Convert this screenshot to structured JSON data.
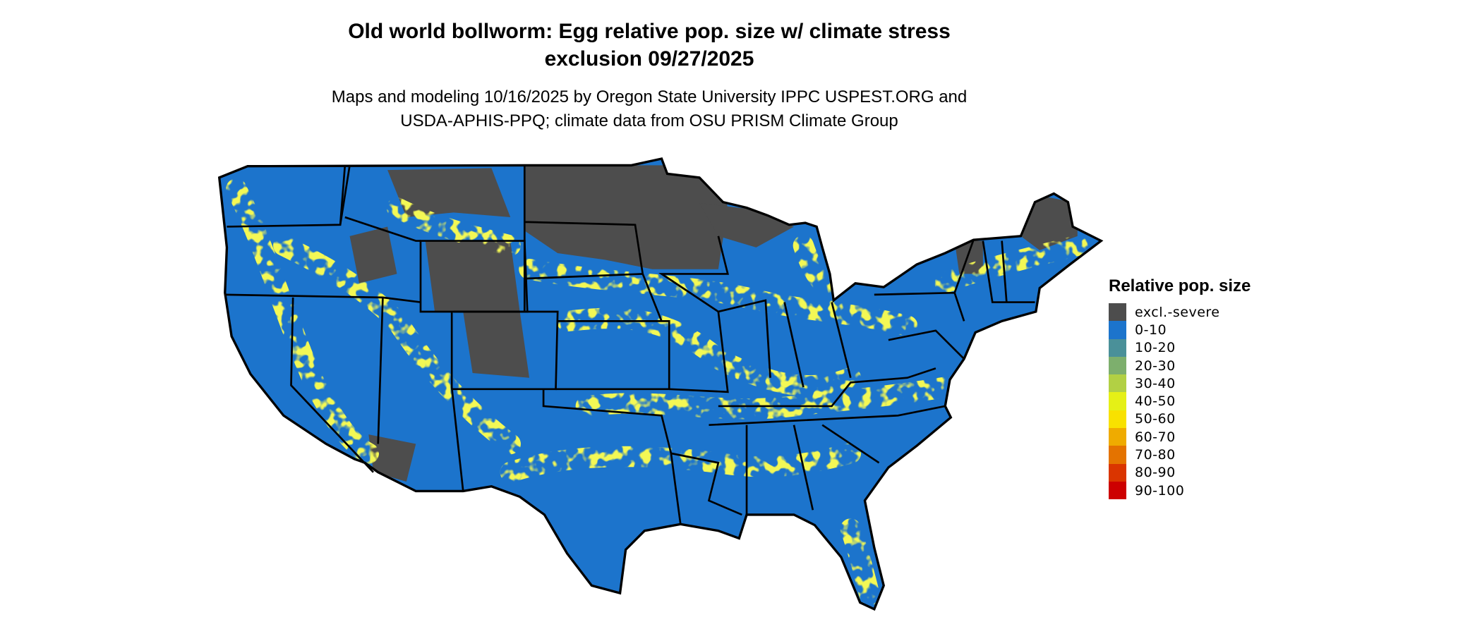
{
  "title": {
    "line1": "Old world bollworm: Egg relative pop. size w/ climate stress",
    "line2": "exclusion 09/27/2025"
  },
  "subtitle": {
    "line1": "Maps and modeling 10/16/2025 by Oregon State University IPPC USPEST.ORG and",
    "line2": "USDA-APHIS-PPQ; climate data from OSU PRISM Climate Group"
  },
  "map": {
    "region": "Contiguous United States",
    "dominant_class": "0-10",
    "border_color": "#000000"
  },
  "legend": {
    "title": "Relative pop. size",
    "items": [
      {
        "label": "excl.-severe",
        "color": "#4d4d4d"
      },
      {
        "label": "0-10",
        "color": "#1c74cc"
      },
      {
        "label": "10-20",
        "color": "#4a9099"
      },
      {
        "label": "20-30",
        "color": "#7daf6d"
      },
      {
        "label": "30-40",
        "color": "#b2d044"
      },
      {
        "label": "40-50",
        "color": "#e5f016"
      },
      {
        "label": "50-60",
        "color": "#f8e100"
      },
      {
        "label": "60-70",
        "color": "#efab00"
      },
      {
        "label": "70-80",
        "color": "#e47300"
      },
      {
        "label": "80-90",
        "color": "#da3500"
      },
      {
        "label": "90-100",
        "color": "#cd0000"
      }
    ]
  }
}
